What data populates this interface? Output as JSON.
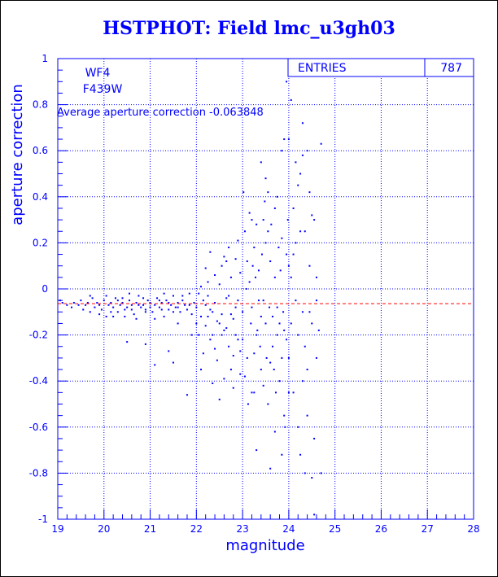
{
  "title": "HSTPHOT: Field lmc_u3gh03",
  "colors": {
    "axis": "#0000ff",
    "points": "#0000ff",
    "mean_line": "#ff0000",
    "title": "#0000ff"
  },
  "stats_box": {
    "label": "ENTRIES",
    "value": "787"
  },
  "labels": {
    "chip": "WF4",
    "filter": "F439W",
    "average": "Average aperture correction -0.063848"
  },
  "chart_data": {
    "type": "scatter",
    "title": "HSTPHOT: Field lmc_u3gh03",
    "xlabel": "magnitude",
    "ylabel": "aperture correction",
    "xlim": [
      19,
      28
    ],
    "ylim": [
      -1,
      1
    ],
    "xticks": [
      19,
      20,
      21,
      22,
      23,
      24,
      25,
      26,
      27,
      28
    ],
    "yticks": [
      -1,
      -0.8,
      -0.6,
      -0.4,
      -0.2,
      0,
      0.2,
      0.4,
      0.6,
      0.8,
      1
    ],
    "xtick_labels": [
      "19",
      "20",
      "21",
      "22",
      "23",
      "24",
      "25",
      "26",
      "27",
      "28"
    ],
    "ytick_labels": [
      "-1",
      "-0.8",
      "-0.6",
      "-0.4",
      "-0.2",
      "0",
      "0.2",
      "0.4",
      "0.6",
      "0.8",
      "1"
    ],
    "grid": true,
    "mean_line": -0.063848,
    "entries": 787,
    "points": [
      [
        19.05,
        -0.05
      ],
      [
        19.1,
        -0.06
      ],
      [
        19.2,
        -0.07
      ],
      [
        19.3,
        -0.08
      ],
      [
        19.35,
        -0.06
      ],
      [
        19.45,
        -0.07
      ],
      [
        19.5,
        -0.05
      ],
      [
        19.55,
        -0.09
      ],
      [
        19.6,
        -0.07
      ],
      [
        19.65,
        -0.06
      ],
      [
        19.7,
        -0.1
      ],
      [
        19.75,
        -0.04
      ],
      [
        19.8,
        -0.08
      ],
      [
        19.85,
        -0.06
      ],
      [
        19.9,
        -0.07
      ],
      [
        19.95,
        -0.09
      ],
      [
        20.0,
        -0.05
      ],
      [
        20.05,
        -0.12
      ],
      [
        20.1,
        -0.07
      ],
      [
        20.15,
        -0.06
      ],
      [
        20.2,
        -0.08
      ],
      [
        20.25,
        -0.04
      ],
      [
        20.3,
        -0.1
      ],
      [
        20.35,
        -0.07
      ],
      [
        20.4,
        -0.06
      ],
      [
        20.45,
        -0.09
      ],
      [
        20.5,
        -0.08
      ],
      [
        20.55,
        -0.05
      ],
      [
        20.6,
        -0.07
      ],
      [
        20.65,
        -0.11
      ],
      [
        20.7,
        -0.06
      ],
      [
        20.75,
        -0.03
      ],
      [
        20.8,
        -0.08
      ],
      [
        20.85,
        -0.07
      ],
      [
        20.9,
        -0.09
      ],
      [
        20.95,
        -0.05
      ],
      [
        21.0,
        -0.06
      ],
      [
        21.05,
        -0.1
      ],
      [
        21.1,
        -0.07
      ],
      [
        21.15,
        -0.04
      ],
      [
        21.2,
        -0.08
      ],
      [
        21.25,
        -0.06
      ],
      [
        21.3,
        -0.12
      ],
      [
        21.35,
        -0.05
      ],
      [
        21.4,
        -0.09
      ],
      [
        21.45,
        -0.07
      ],
      [
        21.5,
        -0.03
      ],
      [
        21.55,
        -0.08
      ],
      [
        21.6,
        -0.06
      ],
      [
        21.65,
        -0.1
      ],
      [
        21.7,
        -0.05
      ],
      [
        21.75,
        -0.07
      ],
      [
        21.8,
        -0.09
      ],
      [
        21.85,
        -0.02
      ],
      [
        21.9,
        -0.11
      ],
      [
        21.95,
        -0.06
      ],
      [
        20.2,
        -0.12
      ],
      [
        20.4,
        -0.04
      ],
      [
        20.55,
        -0.02
      ],
      [
        20.7,
        -0.13
      ],
      [
        20.9,
        -0.1
      ],
      [
        21.1,
        -0.13
      ],
      [
        21.3,
        -0.02
      ],
      [
        21.5,
        -0.1
      ],
      [
        20.05,
        -0.03
      ],
      [
        20.3,
        -0.05
      ],
      [
        20.6,
        -0.09
      ],
      [
        20.85,
        -0.04
      ],
      [
        21.0,
        -0.08
      ],
      [
        21.2,
        -0.05
      ],
      [
        21.4,
        -0.06
      ],
      [
        21.6,
        -0.08
      ],
      [
        20.5,
        -0.23
      ],
      [
        20.9,
        -0.24
      ],
      [
        21.6,
        -0.15
      ],
      [
        21.8,
        -0.46
      ],
      [
        21.5,
        -0.32
      ],
      [
        21.4,
        -0.27
      ],
      [
        21.1,
        -0.33
      ],
      [
        21.9,
        -0.2
      ],
      [
        19.7,
        -0.03
      ],
      [
        19.9,
        -0.11
      ],
      [
        20.15,
        -0.1
      ],
      [
        20.45,
        -0.12
      ],
      [
        20.75,
        -0.07
      ],
      [
        21.25,
        -0.09
      ],
      [
        21.7,
        -0.03
      ],
      [
        21.85,
        -0.07
      ],
      [
        22.0,
        -0.08
      ],
      [
        22.05,
        -0.02
      ],
      [
        22.1,
        -0.12
      ],
      [
        22.15,
        -0.05
      ],
      [
        22.2,
        -0.16
      ],
      [
        22.25,
        -0.03
      ],
      [
        22.3,
        -0.09
      ],
      [
        22.35,
        -0.2
      ],
      [
        22.4,
        -0.06
      ],
      [
        22.45,
        -0.14
      ],
      [
        22.5,
        0.02
      ],
      [
        22.55,
        -0.11
      ],
      [
        22.6,
        -0.18
      ],
      [
        22.65,
        -0.04
      ],
      [
        22.7,
        -0.25
      ],
      [
        22.75,
        0.05
      ],
      [
        22.8,
        -0.13
      ],
      [
        22.85,
        -0.08
      ],
      [
        22.9,
        -0.22
      ],
      [
        22.95,
        0.07
      ],
      [
        22.05,
        -0.2
      ],
      [
        22.15,
        -0.28
      ],
      [
        22.25,
        0.03
      ],
      [
        22.35,
        -0.1
      ],
      [
        22.45,
        -0.31
      ],
      [
        22.55,
        0.1
      ],
      [
        22.65,
        -0.17
      ],
      [
        22.75,
        -0.35
      ],
      [
        22.85,
        0.13
      ],
      [
        22.95,
        -0.27
      ],
      [
        22.1,
        0.01
      ],
      [
        22.2,
        -0.07
      ],
      [
        22.3,
        -0.22
      ],
      [
        22.4,
        0.06
      ],
      [
        22.5,
        -0.15
      ],
      [
        22.6,
        -0.39
      ],
      [
        22.7,
        0.18
      ],
      [
        22.8,
        -0.29
      ],
      [
        22.9,
        -0.05
      ],
      [
        22.0,
        -0.15
      ],
      [
        22.2,
        0.09
      ],
      [
        22.4,
        -0.26
      ],
      [
        22.6,
        0.14
      ],
      [
        22.8,
        -0.43
      ],
      [
        22.3,
        0.16
      ],
      [
        22.5,
        -0.48
      ],
      [
        22.7,
        -0.03
      ],
      [
        22.9,
        0.21
      ],
      [
        22.1,
        -0.35
      ],
      [
        22.35,
        -0.41
      ],
      [
        22.55,
        -0.2
      ],
      [
        22.75,
        -0.11
      ],
      [
        22.95,
        -0.37
      ],
      [
        22.25,
        -0.12
      ],
      [
        22.65,
        0.12
      ],
      [
        22.85,
        -0.2
      ],
      [
        23.0,
        -0.1
      ],
      [
        23.05,
        0.25
      ],
      [
        23.1,
        -0.3
      ],
      [
        23.15,
        0.03
      ],
      [
        23.2,
        -0.45
      ],
      [
        23.25,
        0.18
      ],
      [
        23.3,
        -0.2
      ],
      [
        23.35,
        0.08
      ],
      [
        23.4,
        -0.35
      ],
      [
        23.45,
        0.3
      ],
      [
        23.5,
        -0.15
      ],
      [
        23.55,
        -0.5
      ],
      [
        23.6,
        0.12
      ],
      [
        23.65,
        -0.25
      ],
      [
        23.7,
        0.35
      ],
      [
        23.75,
        -0.08
      ],
      [
        23.8,
        -0.4
      ],
      [
        23.85,
        0.22
      ],
      [
        23.9,
        -0.18
      ],
      [
        23.95,
        0.15
      ],
      [
        23.0,
        -0.22
      ],
      [
        23.1,
        0.12
      ],
      [
        23.2,
        -0.08
      ],
      [
        23.3,
        0.28
      ],
      [
        23.4,
        -0.12
      ],
      [
        23.5,
        0.2
      ],
      [
        23.6,
        -0.32
      ],
      [
        23.7,
        0.05
      ],
      [
        23.8,
        -0.15
      ],
      [
        23.9,
        -0.55
      ],
      [
        23.05,
        -0.38
      ],
      [
        23.15,
        0.33
      ],
      [
        23.25,
        -0.28
      ],
      [
        23.35,
        -0.05
      ],
      [
        23.45,
        -0.42
      ],
      [
        23.55,
        0.25
      ],
      [
        23.65,
        -0.12
      ],
      [
        23.75,
        0.4
      ],
      [
        23.85,
        -0.3
      ],
      [
        23.95,
        -0.22
      ],
      [
        23.02,
        0.42
      ],
      [
        23.12,
        -0.5
      ],
      [
        23.22,
        0.1
      ],
      [
        23.32,
        -0.18
      ],
      [
        23.42,
        0.15
      ],
      [
        23.52,
        -0.3
      ],
      [
        23.62,
        0.28
      ],
      [
        23.72,
        -0.45
      ],
      [
        23.82,
        0.08
      ],
      [
        23.92,
        -0.6
      ],
      [
        23.18,
        -0.15
      ],
      [
        23.28,
        0.05
      ],
      [
        23.38,
        -0.25
      ],
      [
        23.48,
        0.38
      ],
      [
        23.58,
        -0.08
      ],
      [
        23.68,
        -0.35
      ],
      [
        23.78,
        0.18
      ],
      [
        23.88,
        -0.1
      ],
      [
        23.98,
        0.3
      ],
      [
        23.08,
        0.0
      ],
      [
        23.4,
        0.55
      ],
      [
        23.6,
        -0.78
      ],
      [
        23.5,
        0.48
      ],
      [
        23.3,
        -0.7
      ],
      [
        23.7,
        -0.62
      ],
      [
        23.9,
        0.65
      ],
      [
        23.25,
        -0.45
      ],
      [
        23.55,
        0.42
      ],
      [
        23.85,
        -0.72
      ],
      [
        23.2,
        0.3
      ],
      [
        23.75,
        -0.2
      ],
      [
        23.45,
        -0.05
      ],
      [
        24.0,
        -0.3
      ],
      [
        24.05,
        0.05
      ],
      [
        24.1,
        -0.45
      ],
      [
        24.15,
        0.2
      ],
      [
        24.2,
        -0.2
      ],
      [
        24.25,
        0.5
      ],
      [
        24.3,
        -0.1
      ],
      [
        24.35,
        0.25
      ],
      [
        24.4,
        -0.55
      ],
      [
        24.45,
        0.1
      ],
      [
        24.5,
        -0.15
      ],
      [
        24.55,
        0.3
      ],
      [
        24.6,
        -0.05
      ],
      [
        24.65,
        -0.18
      ],
      [
        24.0,
        0.1
      ],
      [
        24.1,
        0.35
      ],
      [
        24.2,
        -0.6
      ],
      [
        24.3,
        0.58
      ],
      [
        24.4,
        -0.35
      ],
      [
        24.5,
        -0.82
      ],
      [
        24.0,
        -0.45
      ],
      [
        24.15,
        0.55
      ],
      [
        24.35,
        -0.25
      ],
      [
        24.45,
        0.42
      ],
      [
        24.05,
        -0.15
      ],
      [
        24.25,
        -0.72
      ],
      [
        24.4,
        0.6
      ],
      [
        24.55,
        -0.65
      ],
      [
        24.6,
        -0.3
      ],
      [
        24.2,
        0.45
      ],
      [
        24.3,
        -0.4
      ],
      [
        24.1,
        0.15
      ],
      [
        24.5,
        0.32
      ],
      [
        24.35,
        -0.8
      ],
      [
        24.15,
        -0.05
      ],
      [
        24.25,
        0.25
      ],
      [
        24.45,
        -0.1
      ],
      [
        24.6,
        0.05
      ],
      [
        24.0,
        0.65
      ],
      [
        24.3,
        0.72
      ],
      [
        23.95,
        0.9
      ],
      [
        24.05,
        0.82
      ],
      [
        23.85,
        0.6
      ],
      [
        24.7,
        0.63
      ],
      [
        24.55,
        -0.98
      ],
      [
        24.7,
        -0.8
      ]
    ]
  }
}
